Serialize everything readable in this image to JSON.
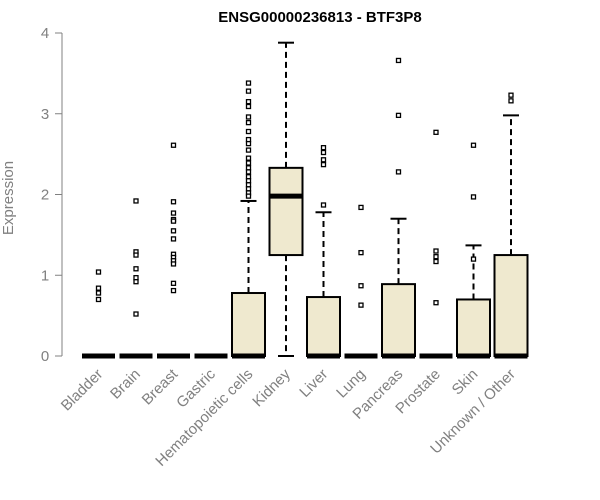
{
  "chart_data": {
    "type": "box",
    "title": "ENSG00000236813 - BTF3P8",
    "ylabel": "Expression",
    "xlabel": "",
    "ylim": [
      0,
      4
    ],
    "yticks": [
      "0",
      "1",
      "2",
      "3",
      "4"
    ],
    "box_fill": "#efe9cf",
    "categories": [
      "Bladder",
      "Brain",
      "Breast",
      "Gastric",
      "Hematopoietic cells",
      "Kidney",
      "Liver",
      "Lung",
      "Pancreas",
      "Prostate",
      "Skin",
      "Unknown / Other"
    ],
    "boxes": [
      {
        "q1": 0,
        "median": 0,
        "q3": 0,
        "whisker_low": 0,
        "whisker_high": 0,
        "outliers": [
          1.04,
          0.84,
          0.78,
          0.7
        ]
      },
      {
        "q1": 0,
        "median": 0,
        "q3": 0,
        "whisker_low": 0,
        "whisker_high": 0,
        "outliers": [
          1.92,
          1.29,
          1.25,
          1.08,
          0.97,
          0.92,
          0.52
        ]
      },
      {
        "q1": 0,
        "median": 0,
        "q3": 0,
        "whisker_low": 0,
        "whisker_high": 0,
        "outliers": [
          2.61,
          1.91,
          1.77,
          1.69,
          1.67,
          1.55,
          1.45,
          1.26,
          1.22,
          1.18,
          1.14,
          0.9,
          0.81
        ]
      },
      {
        "q1": 0,
        "median": 0,
        "q3": 0,
        "whisker_low": 0,
        "whisker_high": 0,
        "outliers": []
      },
      {
        "q1": 0,
        "median": 0,
        "q3": 0.78,
        "whisker_low": 0,
        "whisker_high": 1.92,
        "outliers": [
          3.38,
          3.28,
          3.15,
          3.09,
          2.96,
          2.89,
          2.78,
          2.68,
          2.63,
          2.55,
          2.45,
          2.39,
          2.33,
          2.28,
          2.22,
          2.17,
          2.12,
          2.07,
          2.02,
          1.98
        ]
      },
      {
        "q1": 1.25,
        "median": 1.98,
        "q3": 2.33,
        "whisker_low": 0,
        "whisker_high": 3.88,
        "outliers": []
      },
      {
        "q1": 0,
        "median": 0,
        "q3": 0.73,
        "whisker_low": 0,
        "whisker_high": 1.78,
        "outliers": [
          2.58,
          2.52,
          2.43,
          2.37,
          1.87
        ]
      },
      {
        "q1": 0,
        "median": 0,
        "q3": 0,
        "whisker_low": 0,
        "whisker_high": 0,
        "outliers": [
          1.84,
          1.28,
          0.87,
          0.63
        ]
      },
      {
        "q1": 0,
        "median": 0,
        "q3": 0.89,
        "whisker_low": 0,
        "whisker_high": 1.7,
        "outliers": [
          3.66,
          2.98,
          2.28
        ]
      },
      {
        "q1": 0,
        "median": 0,
        "q3": 0,
        "whisker_low": 0,
        "whisker_high": 0,
        "outliers": [
          2.77,
          1.3,
          1.23,
          1.17,
          0.66
        ]
      },
      {
        "q1": 0,
        "median": 0,
        "q3": 0.7,
        "whisker_low": 0,
        "whisker_high": 1.37,
        "outliers": [
          2.61,
          1.97,
          1.2
        ]
      },
      {
        "q1": 0,
        "median": 0,
        "q3": 1.25,
        "whisker_low": 0,
        "whisker_high": 2.98,
        "outliers": [
          3.23,
          3.16
        ]
      }
    ]
  }
}
